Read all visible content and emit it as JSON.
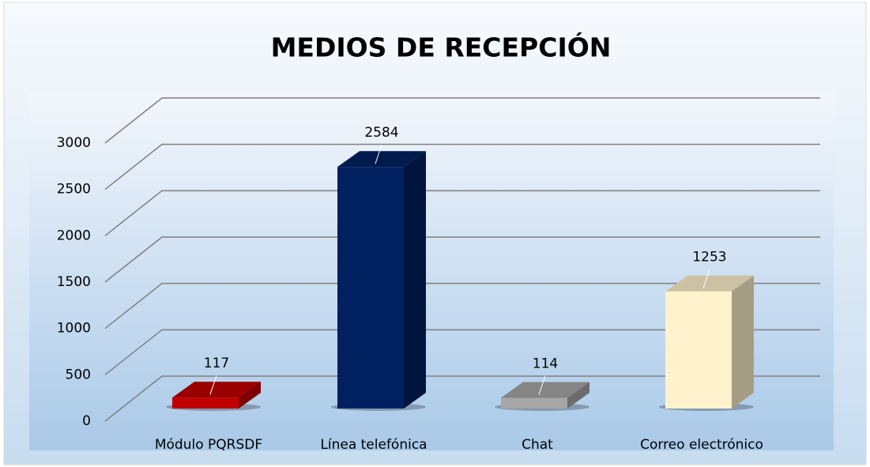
{
  "chart_data": {
    "type": "bar3d",
    "title": "MEDIOS DE RECEPCIÓN",
    "categories": [
      "Módulo PQRSDF",
      "Línea telefónica",
      "Chat",
      "Correo electrónico"
    ],
    "values": [
      117,
      2584,
      114,
      1253
    ],
    "colors": [
      "#c00000",
      "#002060",
      "#a6a6a6",
      "#fff2cc"
    ],
    "ylim": [
      0,
      3000
    ],
    "yticks": [
      0,
      500,
      1000,
      1500,
      2000,
      2500,
      3000
    ],
    "grid": true
  }
}
